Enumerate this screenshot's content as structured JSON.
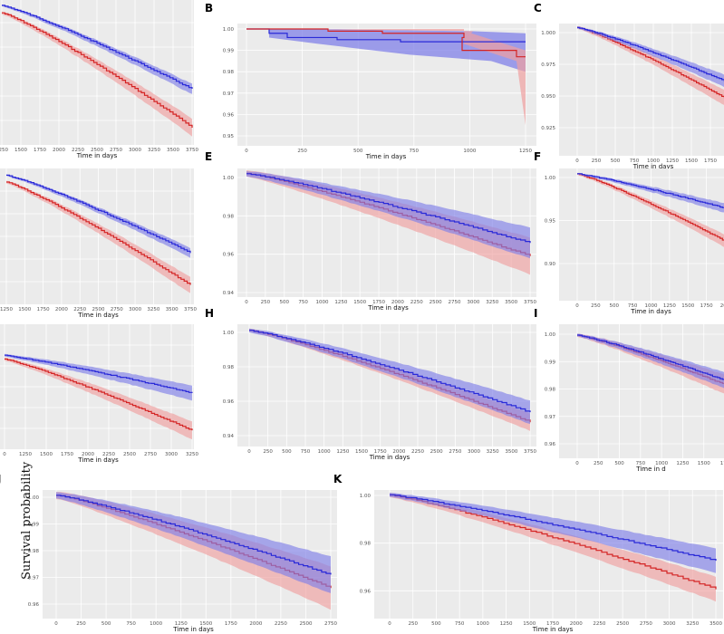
{
  "figure": {
    "y_axis_label": "Survival probability",
    "colors": {
      "panel_bg": "#ebebeb",
      "grid": "#ffffff",
      "blue": "#2a2ad8",
      "blue_fill": "#8080e8",
      "red": "#d42424",
      "red_fill": "#f0a0a0"
    }
  },
  "chart_data": [
    {
      "panel": "A",
      "label": "",
      "type": "line",
      "xlabel": "Time in days",
      "x_ticks": [
        "1250",
        "1500",
        "1750",
        "2000",
        "2250",
        "2500",
        "2750",
        "3000",
        "3250",
        "3500",
        "3750"
      ],
      "y_ticks": [],
      "series": [
        {
          "name": "blue",
          "color": "#2a2ad8",
          "values": [
            0.88,
            0.84,
            0.78,
            0.68,
            0.52,
            0.28
          ]
        },
        {
          "name": "red",
          "color": "#d42424",
          "values": [
            0.8,
            0.72,
            0.62,
            0.48,
            0.25,
            -0.05
          ]
        }
      ]
    },
    {
      "panel": "B",
      "label": "B",
      "type": "line",
      "xlabel": "Time in days",
      "x_ticks": [
        "0",
        "250",
        "500",
        "750",
        "1000",
        "1250"
      ],
      "y_ticks": [
        "1.00",
        "0.99",
        "0.98",
        "0.97",
        "0.96",
        "0.95"
      ],
      "ylim": [
        0.95,
        1.0
      ],
      "series": [
        {
          "name": "blue",
          "color": "#2a2ad8",
          "x": [
            0,
            50,
            100,
            300,
            600,
            1000,
            1300
          ],
          "values": [
            1.0,
            0.998,
            0.996,
            0.995,
            0.994,
            0.994,
            0.994
          ]
        },
        {
          "name": "red",
          "color": "#d42424",
          "x": [
            0,
            250,
            500,
            750,
            1000,
            1150,
            1300
          ],
          "values": [
            1.0,
            0.998,
            0.997,
            0.996,
            0.993,
            0.99,
            0.987
          ]
        }
      ]
    },
    {
      "panel": "C",
      "label": "C",
      "type": "line",
      "xlabel": "Time in days",
      "x_ticks": [
        "0",
        "250",
        "500",
        "750",
        "1000",
        "1250",
        "1500",
        "1750",
        "200"
      ],
      "y_ticks": [
        "1.000",
        "0.975",
        "0.950",
        "0.925"
      ],
      "series": []
    },
    {
      "panel": "D",
      "label": "",
      "type": "line",
      "xlabel": "Time in days",
      "x_ticks": [
        "1250",
        "1500",
        "1750",
        "2000",
        "2250",
        "2500",
        "2750",
        "3000",
        "3250",
        "3500",
        "3750"
      ],
      "y_ticks": [],
      "series": []
    },
    {
      "panel": "E",
      "label": "E",
      "type": "line",
      "xlabel": "Time in days",
      "x_ticks": [
        "0",
        "250",
        "500",
        "750",
        "1000",
        "1250",
        "1500",
        "1750",
        "2000",
        "2250",
        "2500",
        "2750",
        "3000",
        "3250",
        "3500",
        "3750"
      ],
      "y_ticks": [
        "1.00",
        "0.98",
        "0.96",
        "0.94"
      ],
      "series": []
    },
    {
      "panel": "F",
      "label": "F",
      "type": "line",
      "xlabel": "Time in days",
      "x_ticks": [
        "0",
        "250",
        "500",
        "750",
        "1000",
        "1250",
        "1500",
        "1750",
        "200"
      ],
      "y_ticks": [
        "1.00",
        "0.95",
        "0.90"
      ],
      "series": []
    },
    {
      "panel": "G",
      "label": "",
      "type": "line",
      "xlabel": "Time in days",
      "x_ticks": [
        "0",
        "1250",
        "1500",
        "1750",
        "2000",
        "2250",
        "2500",
        "2750",
        "3000",
        "3250"
      ],
      "y_ticks": [],
      "series": []
    },
    {
      "panel": "H",
      "label": "H",
      "type": "line",
      "xlabel": "Time in days",
      "x_ticks": [
        "0",
        "250",
        "500",
        "750",
        "1000",
        "1250",
        "1500",
        "1750",
        "2000",
        "2250",
        "2500",
        "2750",
        "3000",
        "3250",
        "3500",
        "3750"
      ],
      "y_ticks": [
        "1.00",
        "0.98",
        "0.96",
        "0.94"
      ],
      "series": []
    },
    {
      "panel": "I",
      "label": "I",
      "type": "line",
      "xlabel": "Time in d",
      "x_ticks": [
        "0",
        "250",
        "500",
        "750",
        "1000",
        "1250",
        "1500",
        "175"
      ],
      "y_ticks": [
        "1.00",
        "0.99",
        "0.98",
        "0.97",
        "0.96"
      ],
      "series": []
    },
    {
      "panel": "J",
      "label": "J",
      "type": "line",
      "xlabel": "Time in days",
      "x_ticks": [
        "0",
        "250",
        "500",
        "750",
        "1000",
        "1250",
        "1500",
        "1750",
        "2000",
        "2250",
        "2500",
        "2750"
      ],
      "y_ticks": [
        "1.00",
        "0.99",
        "0.98",
        "0.97",
        "0.96"
      ],
      "series": []
    },
    {
      "panel": "K",
      "label": "K",
      "type": "line",
      "xlabel": "Time in days",
      "x_ticks": [
        "0",
        "250",
        "500",
        "750",
        "1000",
        "1250",
        "1500",
        "1750",
        "2000",
        "2250",
        "2500",
        "2750",
        "3000",
        "3250",
        "3500"
      ],
      "y_ticks": [
        "1.00",
        "0.98",
        "0.96",
        "0.94"
      ],
      "series": []
    }
  ]
}
